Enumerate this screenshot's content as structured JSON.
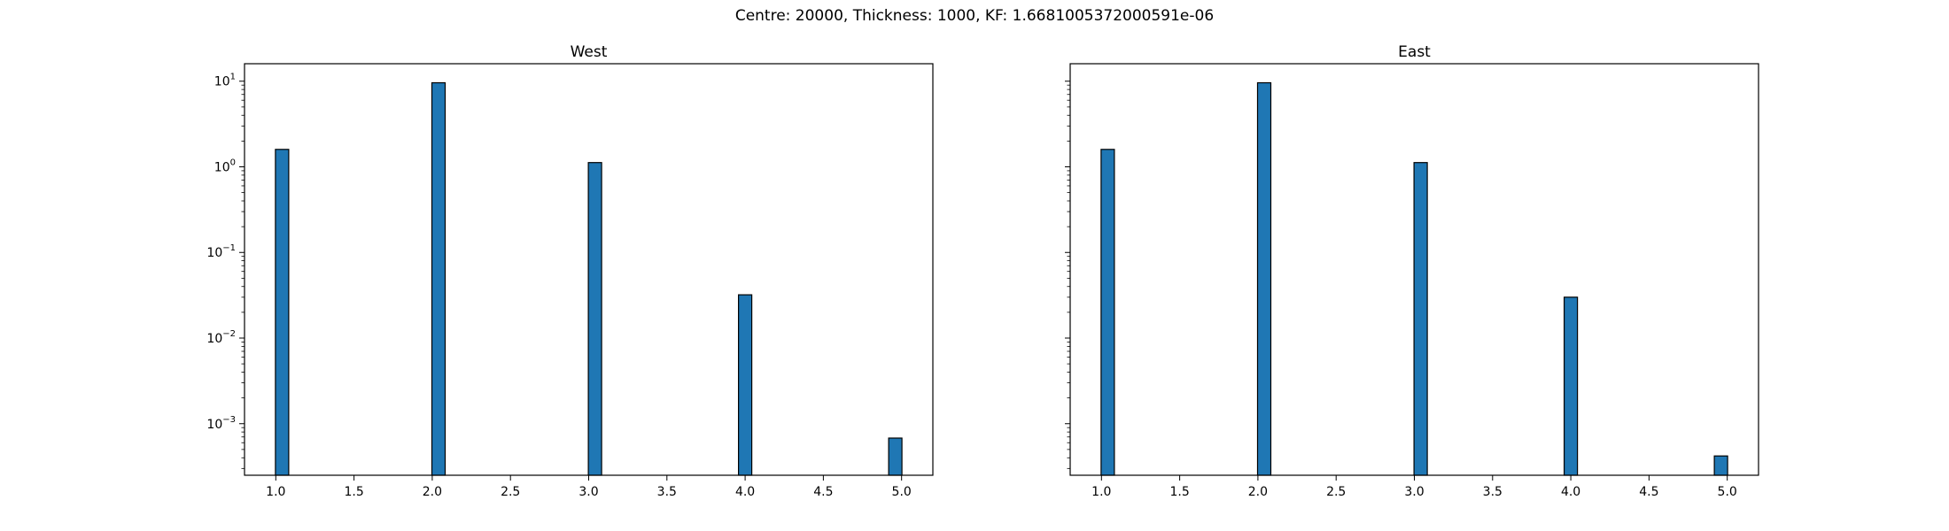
{
  "figure": {
    "suptitle": "Centre: 20000, Thickness: 1000, KF: 1.6681005372000591e-06"
  },
  "chart_data": [
    {
      "type": "bar",
      "title": "West",
      "xlabel": "",
      "ylabel": "",
      "yscale": "log",
      "xlim": [
        0.8,
        5.2
      ],
      "ylim": [
        0.00025,
        16
      ],
      "xticks": [
        "1.0",
        "1.5",
        "2.0",
        "2.5",
        "3.0",
        "3.5",
        "4.0",
        "4.5",
        "5.0"
      ],
      "yticks": [
        "10^-3",
        "10^-2",
        "10^-1",
        "10^0",
        "10^1"
      ],
      "grid": false,
      "bar_color": "#1f77b4",
      "edge_color": "#000000",
      "x": [
        1.04,
        2.04,
        3.04,
        4.0,
        4.96
      ],
      "values": [
        1.6,
        9.6,
        1.12,
        0.032,
        0.00068
      ]
    },
    {
      "type": "bar",
      "title": "East",
      "xlabel": "",
      "ylabel": "",
      "yscale": "log",
      "xlim": [
        0.8,
        5.2
      ],
      "ylim": [
        0.00025,
        16
      ],
      "xticks": [
        "1.0",
        "1.5",
        "2.0",
        "2.5",
        "3.0",
        "3.5",
        "4.0",
        "4.5",
        "5.0"
      ],
      "yticks": [],
      "grid": false,
      "bar_color": "#1f77b4",
      "edge_color": "#000000",
      "x": [
        1.04,
        2.04,
        3.04,
        4.0,
        4.96
      ],
      "values": [
        1.6,
        9.6,
        1.12,
        0.03,
        0.00042
      ]
    }
  ]
}
